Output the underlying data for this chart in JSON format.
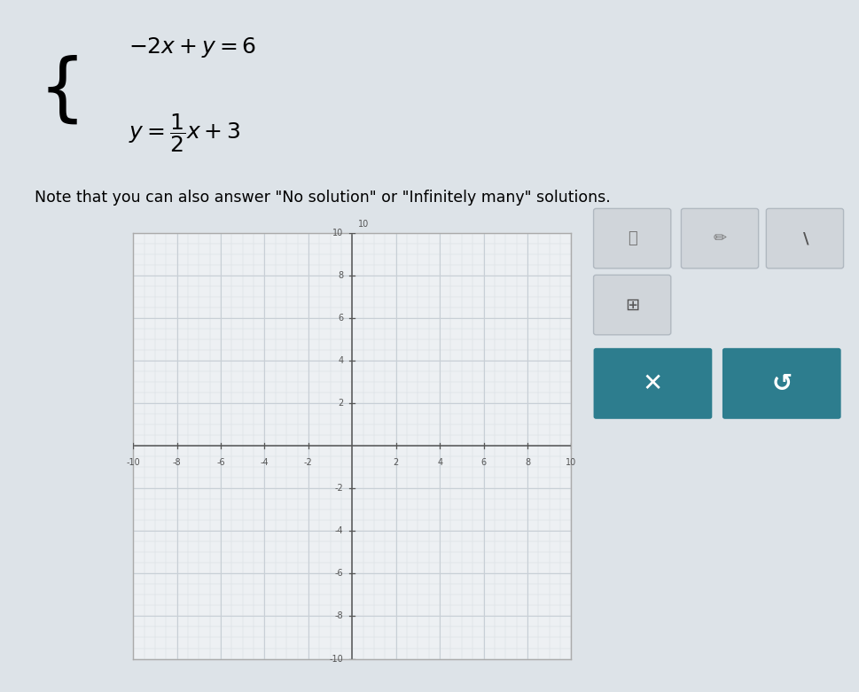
{
  "background_color": "#dde3e8",
  "graph_bg_color": "#edf0f3",
  "graph_border_color": "#aaaaaa",
  "note_text": "Note that you can also answer \"No solution\" or \"Infinitely many\" solutions.",
  "x_min": -10,
  "x_max": 10,
  "y_min": -10,
  "y_max": 10,
  "x_ticks": [
    -10,
    -8,
    -6,
    -4,
    -2,
    2,
    4,
    6,
    8,
    10
  ],
  "y_ticks": [
    -10,
    -8,
    -6,
    -4,
    -2,
    2,
    4,
    6,
    8,
    10
  ],
  "grid_major_color": "#c8cfd6",
  "grid_minor_color": "#d8dde2",
  "axis_color": "#555555",
  "tick_label_color": "#555555",
  "tick_label_fontsize": 7,
  "button_teal_color": "#2d7d8e",
  "button_gray_color": "#d0d5da",
  "panel_bg": "#e8edf2",
  "panel_border": "#c0c8d0"
}
